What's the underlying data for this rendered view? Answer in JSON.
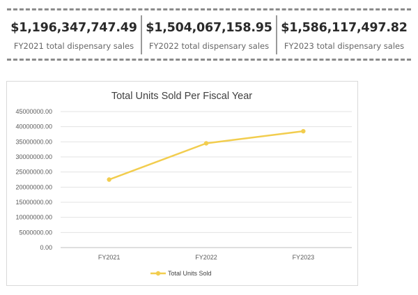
{
  "stats": [
    {
      "value": "$1,196,347,747.49",
      "caption": "FY2021 total dispensary sales"
    },
    {
      "value": "$1,504,067,158.95",
      "caption": "FY2022 total dispensary sales"
    },
    {
      "value": "$1,586,117,497.82",
      "caption": "FY2023 total dispensary sales"
    }
  ],
  "chart_data": {
    "type": "line",
    "title": "Total Units Sold Per Fiscal Year",
    "categories": [
      "FY2021",
      "FY2022",
      "FY2023"
    ],
    "series": [
      {
        "name": "Total Units Sold",
        "values": [
          22500000,
          34500000,
          38500000
        ],
        "color": "#f2cd4e"
      }
    ],
    "y_ticks": [
      "0.00",
      "5000000.00",
      "10000000.00",
      "15000000.00",
      "20000000.00",
      "25000000.00",
      "30000000.00",
      "35000000.00",
      "40000000.00",
      "45000000.00"
    ],
    "ylim": [
      0,
      45000000
    ],
    "grid": true,
    "legend": "bottom"
  }
}
